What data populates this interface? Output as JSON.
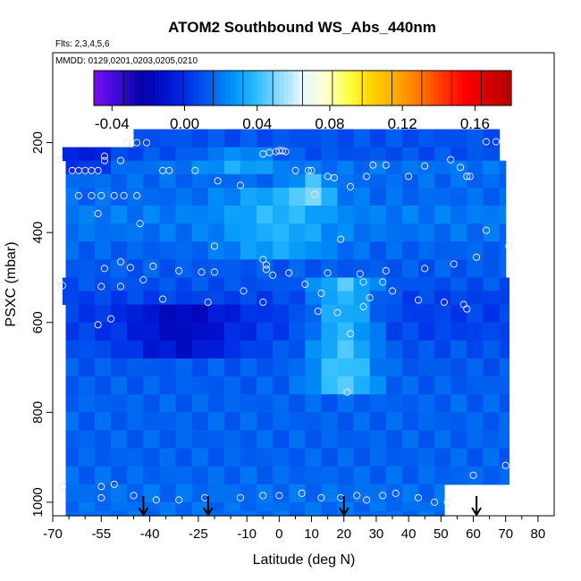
{
  "chart_data": {
    "type": "heatmap",
    "title": "ATOM2 Southbound WS_Abs_440nm",
    "subtitle_lines": [
      "Flts: 2,3,4,5,6",
      "MMDD: 0129,0201,0203,0205,0210"
    ],
    "xlabel": "Latitude (deg N)",
    "ylabel": "PSXC (mbar)",
    "xlim": [
      -70,
      85
    ],
    "ylim": [
      1030,
      0
    ],
    "x_ticks": [
      -70,
      -55,
      -40,
      -25,
      -10,
      0,
      10,
      20,
      30,
      40,
      50,
      60,
      70,
      80
    ],
    "x_tick_labels": [
      "-70",
      "-55",
      "-40",
      "-25",
      "-10",
      "0",
      "10",
      "20",
      "30",
      "40",
      "50",
      "60",
      "70",
      "80"
    ],
    "x_minor_ticks": [
      -65,
      -60,
      -50,
      -45,
      -35,
      -30,
      -20,
      -15,
      -5,
      5,
      15,
      25,
      35,
      45,
      55,
      65,
      75
    ],
    "y_ticks": [
      200,
      400,
      600,
      800,
      1000
    ],
    "y_tick_labels": [
      "200",
      "400",
      "600",
      "800",
      "1000"
    ],
    "colorbar": {
      "min": -0.05,
      "max": 0.18,
      "ticks": [
        -0.04,
        0.0,
        0.04,
        0.08,
        0.12,
        0.16
      ],
      "tick_labels": [
        "-0.04",
        "0.00",
        "0.04",
        "0.08",
        "0.12",
        "0.16"
      ],
      "colors": [
        "#7a0cf2",
        "#3a0cd8",
        "#0a00a8",
        "#0010cc",
        "#0030e8",
        "#0060f0",
        "#0094f8",
        "#2cbcff",
        "#8cdcff",
        "#e8f8ff",
        "#ffffd0",
        "#ffff40",
        "#ffd200",
        "#ffaa00",
        "#ff7a00",
        "#ff3a00",
        "#ff0000",
        "#d80000",
        "#b00000"
      ]
    },
    "field": {
      "lat_bins": [
        -67,
        -62,
        -57,
        -52,
        -47,
        -42,
        -37,
        -32,
        -27,
        -22,
        -17,
        -12,
        -7,
        -2,
        3,
        8,
        13,
        18,
        23,
        28,
        33,
        38,
        43,
        48,
        53,
        58,
        63,
        68,
        72
      ],
      "pressure_bins": [
        170,
        210,
        240,
        270,
        300,
        340,
        380,
        420,
        460,
        500,
        530,
        560,
        600,
        640,
        680,
        720,
        760,
        800,
        840,
        880,
        920,
        960,
        1000,
        1020
      ],
      "base": {
        "170": 0.01,
        "210": 0.01,
        "240": 0.018,
        "270": 0.016,
        "300": 0.016,
        "340": 0.02,
        "380": 0.018,
        "420": 0.014,
        "460": 0.012,
        "500": 0.01,
        "530": 0.006,
        "560": 0.005,
        "600": 0.006,
        "640": 0.01,
        "680": 0.012,
        "720": 0.013,
        "760": 0.014,
        "800": 0.014,
        "840": 0.014,
        "880": 0.014,
        "920": 0.015,
        "960": 0.017,
        "1000": 0.017,
        "1020": 0.017
      },
      "notes": "Mostly blue (0.00-0.03) field; lighter cyan (~0.04-0.05) band near 10-25 N between 500 and 700 mbar, darkest blue (~-0.01) near -40 to -20 N around 560-620 mbar."
    },
    "samples": [
      {
        "lat": -68,
        "p": 238
      },
      {
        "lat": -64,
        "p": 262
      },
      {
        "lat": -62,
        "p": 262
      },
      {
        "lat": -60,
        "p": 262
      },
      {
        "lat": -58,
        "p": 262
      },
      {
        "lat": -56,
        "p": 262
      },
      {
        "lat": -54,
        "p": 230
      },
      {
        "lat": -54,
        "p": 240
      },
      {
        "lat": -49,
        "p": 240
      },
      {
        "lat": -47,
        "p": 200
      },
      {
        "lat": -44,
        "p": 200
      },
      {
        "lat": -41,
        "p": 200
      },
      {
        "lat": -36,
        "p": 262
      },
      {
        "lat": -34,
        "p": 262
      },
      {
        "lat": -26,
        "p": 262
      },
      {
        "lat": -19,
        "p": 285
      },
      {
        "lat": -12,
        "p": 295
      },
      {
        "lat": -5,
        "p": 225
      },
      {
        "lat": -3,
        "p": 222
      },
      {
        "lat": -1,
        "p": 220
      },
      {
        "lat": 0,
        "p": 218
      },
      {
        "lat": 1,
        "p": 218
      },
      {
        "lat": 2,
        "p": 220
      },
      {
        "lat": 5,
        "p": 262
      },
      {
        "lat": 9,
        "p": 262
      },
      {
        "lat": 10,
        "p": 262
      },
      {
        "lat": 11,
        "p": 315
      },
      {
        "lat": 15,
        "p": 275
      },
      {
        "lat": 17,
        "p": 278
      },
      {
        "lat": 22,
        "p": 298
      },
      {
        "lat": 27,
        "p": 275
      },
      {
        "lat": 29,
        "p": 250
      },
      {
        "lat": 33,
        "p": 250
      },
      {
        "lat": 40,
        "p": 275
      },
      {
        "lat": 45,
        "p": 252
      },
      {
        "lat": 53,
        "p": 238
      },
      {
        "lat": 56,
        "p": 255
      },
      {
        "lat": 58,
        "p": 275
      },
      {
        "lat": 59,
        "p": 275
      },
      {
        "lat": 64,
        "p": 198
      },
      {
        "lat": 67,
        "p": 198
      },
      {
        "lat": -62,
        "p": 318
      },
      {
        "lat": -58,
        "p": 318
      },
      {
        "lat": -55,
        "p": 318
      },
      {
        "lat": -51,
        "p": 318
      },
      {
        "lat": -48,
        "p": 318
      },
      {
        "lat": -44,
        "p": 318
      },
      {
        "lat": -56,
        "p": 358
      },
      {
        "lat": -43,
        "p": 380
      },
      {
        "lat": 64,
        "p": 395
      },
      {
        "lat": 19,
        "p": 415
      },
      {
        "lat": -20,
        "p": 430
      },
      {
        "lat": 71,
        "p": 430
      },
      {
        "lat": -54,
        "p": 480
      },
      {
        "lat": -49,
        "p": 465
      },
      {
        "lat": -46,
        "p": 478
      },
      {
        "lat": -39,
        "p": 475
      },
      {
        "lat": -31,
        "p": 485
      },
      {
        "lat": -24,
        "p": 488
      },
      {
        "lat": -20,
        "p": 488
      },
      {
        "lat": -5,
        "p": 460
      },
      {
        "lat": -4,
        "p": 472
      },
      {
        "lat": -4,
        "p": 482
      },
      {
        "lat": -2,
        "p": 495
      },
      {
        "lat": 3,
        "p": 490
      },
      {
        "lat": 15,
        "p": 490
      },
      {
        "lat": 25,
        "p": 492
      },
      {
        "lat": 33,
        "p": 485
      },
      {
        "lat": 45,
        "p": 480
      },
      {
        "lat": 54,
        "p": 470
      },
      {
        "lat": 61,
        "p": 455
      },
      {
        "lat": -68,
        "p": 508
      },
      {
        "lat": -67,
        "p": 518
      },
      {
        "lat": -55,
        "p": 520
      },
      {
        "lat": -49,
        "p": 520
      },
      {
        "lat": -42,
        "p": 505
      },
      {
        "lat": -36,
        "p": 548
      },
      {
        "lat": -22,
        "p": 555
      },
      {
        "lat": -11,
        "p": 530
      },
      {
        "lat": -5,
        "p": 555
      },
      {
        "lat": 8,
        "p": 515
      },
      {
        "lat": 13,
        "p": 535
      },
      {
        "lat": 12,
        "p": 575
      },
      {
        "lat": 18,
        "p": 578
      },
      {
        "lat": 26,
        "p": 510
      },
      {
        "lat": 28,
        "p": 545
      },
      {
        "lat": 32,
        "p": 510
      },
      {
        "lat": 35,
        "p": 530
      },
      {
        "lat": 43,
        "p": 550
      },
      {
        "lat": 51,
        "p": 555
      },
      {
        "lat": 57,
        "p": 560
      },
      {
        "lat": 58,
        "p": 570
      },
      {
        "lat": 26,
        "p": 565
      },
      {
        "lat": -56,
        "p": 605
      },
      {
        "lat": -52,
        "p": 592
      },
      {
        "lat": 22,
        "p": 625
      },
      {
        "lat": 21,
        "p": 755
      },
      {
        "lat": 60,
        "p": 940
      },
      {
        "lat": 70,
        "p": 918
      },
      {
        "lat": -67,
        "p": 965
      },
      {
        "lat": -55,
        "p": 965
      },
      {
        "lat": -51,
        "p": 960
      },
      {
        "lat": -55,
        "p": 990
      },
      {
        "lat": -45,
        "p": 985
      },
      {
        "lat": -38,
        "p": 995
      },
      {
        "lat": -31,
        "p": 995
      },
      {
        "lat": -23,
        "p": 990
      },
      {
        "lat": -12,
        "p": 990
      },
      {
        "lat": -5,
        "p": 985
      },
      {
        "lat": 0,
        "p": 985
      },
      {
        "lat": 7,
        "p": 980
      },
      {
        "lat": 13,
        "p": 990
      },
      {
        "lat": 19,
        "p": 990
      },
      {
        "lat": 24,
        "p": 985
      },
      {
        "lat": 27,
        "p": 995
      },
      {
        "lat": 32,
        "p": 985
      },
      {
        "lat": 36,
        "p": 980
      },
      {
        "lat": 43,
        "p": 990
      },
      {
        "lat": 48,
        "p": 1000
      },
      {
        "lat": 52,
        "p": 1000
      }
    ],
    "arrows_at_lat": [
      -42,
      -22,
      20,
      61
    ]
  }
}
